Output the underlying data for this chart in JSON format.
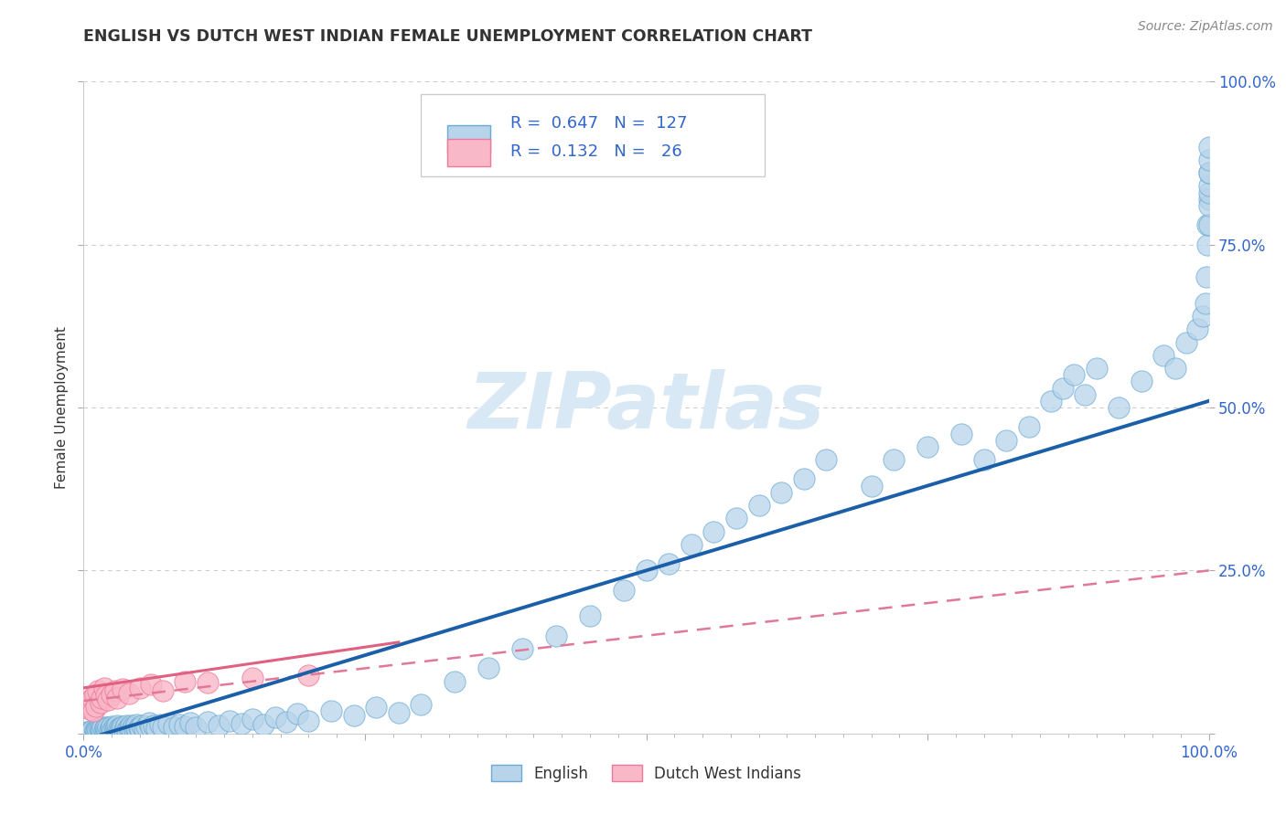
{
  "title": "ENGLISH VS DUTCH WEST INDIAN FEMALE UNEMPLOYMENT CORRELATION CHART",
  "source": "Source: ZipAtlas.com",
  "ylabel": "Female Unemployment",
  "xlim": [
    0,
    1
  ],
  "ylim": [
    0,
    1
  ],
  "watermark": "ZIPatlas",
  "r_english": "0.647",
  "n_english": "127",
  "r_dutch": "0.132",
  "n_dutch": "26",
  "blue_face": "#b8d4ea",
  "blue_edge": "#6aaad4",
  "blue_line": "#1a5fa8",
  "pink_face": "#f9b8c8",
  "pink_edge": "#f07898",
  "pink_line_solid": "#e06080",
  "pink_line_dashed": "#e07898",
  "text_color_blue": "#3366cc",
  "text_color_dark": "#333333",
  "source_color": "#888888",
  "grid_color": "#cccccc",
  "bg_color": "#ffffff",
  "watermark_color": "#d8e8f4",
  "english_x": [
    0.003,
    0.005,
    0.007,
    0.008,
    0.01,
    0.01,
    0.011,
    0.012,
    0.013,
    0.014,
    0.015,
    0.015,
    0.016,
    0.017,
    0.018,
    0.019,
    0.02,
    0.02,
    0.021,
    0.022,
    0.023,
    0.024,
    0.025,
    0.025,
    0.026,
    0.027,
    0.028,
    0.029,
    0.03,
    0.03,
    0.031,
    0.032,
    0.033,
    0.034,
    0.035,
    0.036,
    0.037,
    0.038,
    0.039,
    0.04,
    0.041,
    0.042,
    0.043,
    0.044,
    0.045,
    0.046,
    0.047,
    0.048,
    0.049,
    0.05,
    0.052,
    0.054,
    0.056,
    0.058,
    0.06,
    0.062,
    0.065,
    0.068,
    0.07,
    0.075,
    0.08,
    0.085,
    0.09,
    0.095,
    0.1,
    0.11,
    0.12,
    0.13,
    0.14,
    0.15,
    0.16,
    0.17,
    0.18,
    0.19,
    0.2,
    0.22,
    0.24,
    0.26,
    0.28,
    0.3,
    0.33,
    0.36,
    0.39,
    0.42,
    0.45,
    0.48,
    0.5,
    0.52,
    0.54,
    0.56,
    0.58,
    0.6,
    0.62,
    0.64,
    0.66,
    0.7,
    0.72,
    0.75,
    0.78,
    0.8,
    0.82,
    0.84,
    0.86,
    0.87,
    0.88,
    0.89,
    0.9,
    0.92,
    0.94,
    0.96,
    0.97,
    0.98,
    0.99,
    0.995,
    0.997,
    0.998,
    0.999,
    0.999,
    1.0,
    1.0,
    1.0,
    1.0,
    1.0,
    1.0,
    1.0,
    1.0,
    1.0
  ],
  "english_y": [
    0.002,
    0.003,
    0.004,
    0.005,
    0.003,
    0.006,
    0.004,
    0.007,
    0.005,
    0.008,
    0.004,
    0.007,
    0.006,
    0.009,
    0.005,
    0.008,
    0.004,
    0.01,
    0.006,
    0.009,
    0.005,
    0.008,
    0.004,
    0.011,
    0.006,
    0.009,
    0.007,
    0.01,
    0.005,
    0.012,
    0.008,
    0.006,
    0.01,
    0.007,
    0.011,
    0.005,
    0.009,
    0.013,
    0.006,
    0.01,
    0.008,
    0.012,
    0.007,
    0.011,
    0.005,
    0.009,
    0.014,
    0.006,
    0.01,
    0.008,
    0.012,
    0.007,
    0.011,
    0.016,
    0.009,
    0.013,
    0.008,
    0.014,
    0.01,
    0.015,
    0.009,
    0.014,
    0.011,
    0.016,
    0.01,
    0.018,
    0.012,
    0.02,
    0.015,
    0.022,
    0.014,
    0.025,
    0.018,
    0.03,
    0.02,
    0.035,
    0.028,
    0.04,
    0.032,
    0.045,
    0.08,
    0.1,
    0.13,
    0.15,
    0.18,
    0.22,
    0.25,
    0.26,
    0.29,
    0.31,
    0.33,
    0.35,
    0.37,
    0.39,
    0.42,
    0.38,
    0.42,
    0.44,
    0.46,
    0.42,
    0.45,
    0.47,
    0.51,
    0.53,
    0.55,
    0.52,
    0.56,
    0.5,
    0.54,
    0.58,
    0.56,
    0.6,
    0.62,
    0.64,
    0.66,
    0.7,
    0.75,
    0.78,
    0.82,
    0.78,
    0.81,
    0.83,
    0.84,
    0.86,
    0.86,
    0.88,
    0.9
  ],
  "dutch_x": [
    0.003,
    0.005,
    0.006,
    0.007,
    0.008,
    0.009,
    0.01,
    0.011,
    0.013,
    0.015,
    0.016,
    0.018,
    0.02,
    0.022,
    0.025,
    0.028,
    0.03,
    0.035,
    0.04,
    0.05,
    0.06,
    0.07,
    0.09,
    0.11,
    0.15,
    0.2
  ],
  "dutch_y": [
    0.04,
    0.038,
    0.05,
    0.045,
    0.055,
    0.035,
    0.06,
    0.042,
    0.065,
    0.048,
    0.055,
    0.07,
    0.058,
    0.052,
    0.06,
    0.065,
    0.055,
    0.068,
    0.062,
    0.07,
    0.075,
    0.065,
    0.08,
    0.078,
    0.085,
    0.09
  ]
}
